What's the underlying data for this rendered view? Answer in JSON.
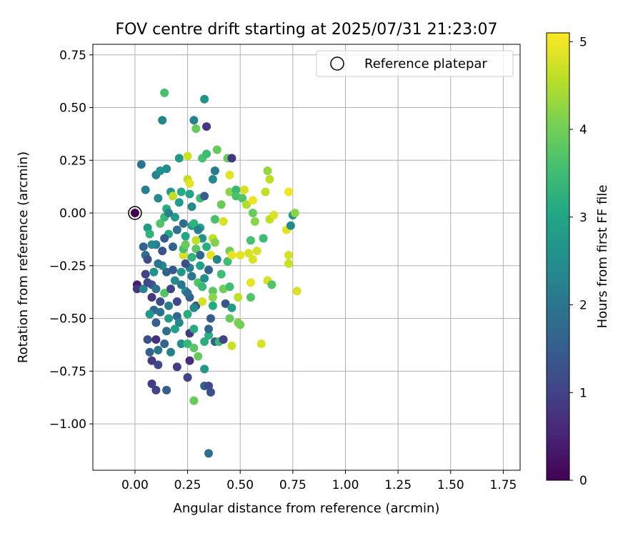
{
  "chart_data": {
    "type": "scatter",
    "title": "FOV centre drift starting at 2025/07/31 21:23:07",
    "xlabel": "Angular distance from reference (arcmin)",
    "ylabel": "Rotation from reference (arcmin)",
    "xlim": [
      -0.2,
      1.83
    ],
    "ylim": [
      -1.22,
      0.8
    ],
    "x_ticks": [
      {
        "value": 0.0,
        "label": "0.00"
      },
      {
        "value": 0.25,
        "label": "0.25"
      },
      {
        "value": 0.5,
        "label": "0.50"
      },
      {
        "value": 0.75,
        "label": "0.75"
      },
      {
        "value": 1.0,
        "label": "1.00"
      },
      {
        "value": 1.25,
        "label": "1.25"
      },
      {
        "value": 1.5,
        "label": "1.50"
      },
      {
        "value": 1.75,
        "label": "1.75"
      }
    ],
    "y_ticks": [
      {
        "value": 0.75,
        "label": "0.75"
      },
      {
        "value": 0.5,
        "label": "0.50"
      },
      {
        "value": 0.25,
        "label": "0.25"
      },
      {
        "value": 0.0,
        "label": "0.00"
      },
      {
        "value": -0.25,
        "label": "−0.25"
      },
      {
        "value": -0.5,
        "label": "−0.50"
      },
      {
        "value": -0.75,
        "label": "−0.75"
      },
      {
        "value": -1.0,
        "label": "−1.00"
      }
    ],
    "grid": true,
    "legend": {
      "position": "top-right",
      "label": "Reference platepar"
    },
    "reference_point": {
      "x": 0.0,
      "y": 0.0
    },
    "colorbar": {
      "label": "Hours from first FF file",
      "colormap": "viridis",
      "range": [
        0,
        5.1
      ],
      "ticks": [
        0,
        1,
        2,
        3,
        4,
        5
      ]
    },
    "points": [
      [
        0.0,
        0.0,
        0.0
      ],
      [
        0.01,
        -0.34,
        0.4
      ],
      [
        0.01,
        -0.36,
        0.8
      ],
      [
        0.03,
        0.23,
        2.0
      ],
      [
        0.04,
        -0.16,
        1.6
      ],
      [
        0.05,
        -0.2,
        1.8
      ],
      [
        0.05,
        0.11,
        2.2
      ],
      [
        0.06,
        -0.07,
        2.8
      ],
      [
        0.07,
        -0.1,
        3.3
      ],
      [
        0.05,
        -0.29,
        1.0
      ],
      [
        0.06,
        -0.22,
        1.2
      ],
      [
        0.08,
        -0.34,
        1.4
      ],
      [
        0.08,
        -0.4,
        0.8
      ],
      [
        0.09,
        -0.46,
        1.7
      ],
      [
        0.06,
        -0.6,
        1.3
      ],
      [
        0.07,
        -0.66,
        1.6
      ],
      [
        0.08,
        -0.7,
        0.9
      ],
      [
        0.08,
        -0.81,
        0.9
      ],
      [
        0.1,
        -0.84,
        1.0
      ],
      [
        0.1,
        -0.6,
        0.7
      ],
      [
        0.11,
        -0.72,
        1.1
      ],
      [
        0.1,
        -0.52,
        1.5
      ],
      [
        0.1,
        -0.36,
        1.9
      ],
      [
        0.12,
        -0.42,
        1.2
      ],
      [
        0.11,
        -0.65,
        2.0
      ],
      [
        0.1,
        -0.15,
        2.1
      ],
      [
        0.1,
        0.18,
        2.3
      ],
      [
        0.11,
        0.07,
        2.4
      ],
      [
        0.12,
        0.2,
        2.6
      ],
      [
        0.13,
        0.44,
        2.3
      ],
      [
        0.14,
        0.57,
        3.6
      ],
      [
        0.15,
        0.21,
        2.5
      ],
      [
        0.12,
        -0.05,
        3.7
      ],
      [
        0.14,
        -0.02,
        3.4
      ],
      [
        0.15,
        0.02,
        3.2
      ],
      [
        0.16,
        -0.1,
        3.0
      ],
      [
        0.13,
        -0.18,
        1.3
      ],
      [
        0.15,
        -0.28,
        1.6
      ],
      [
        0.14,
        -0.38,
        3.7
      ],
      [
        0.16,
        -0.44,
        2.1
      ],
      [
        0.15,
        -0.56,
        1.8
      ],
      [
        0.14,
        -0.62,
        1.6
      ],
      [
        0.17,
        -0.66,
        2.2
      ],
      [
        0.15,
        -0.84,
        1.5
      ],
      [
        0.17,
        0.1,
        2.7
      ],
      [
        0.18,
        0.08,
        4.6
      ],
      [
        0.19,
        -0.02,
        2.8
      ],
      [
        0.2,
        -0.08,
        1.9
      ],
      [
        0.19,
        -0.32,
        2.4
      ],
      [
        0.2,
        -0.49,
        1.7
      ],
      [
        0.21,
        -0.52,
        2.3
      ],
      [
        0.2,
        -0.73,
        0.9
      ],
      [
        0.22,
        -0.62,
        2.5
      ],
      [
        0.21,
        0.26,
        2.7
      ],
      [
        0.22,
        0.1,
        3.1
      ],
      [
        0.23,
        -0.2,
        4.8
      ],
      [
        0.23,
        -0.17,
        3.6
      ],
      [
        0.24,
        -0.15,
        3.9
      ],
      [
        0.24,
        -0.37,
        2.6
      ],
      [
        0.25,
        -0.48,
        3.2
      ],
      [
        0.25,
        -0.62,
        3.4
      ],
      [
        0.25,
        0.27,
        4.7
      ],
      [
        0.25,
        0.16,
        4.6
      ],
      [
        0.26,
        0.14,
        4.9
      ],
      [
        0.26,
        0.09,
        3.0
      ],
      [
        0.27,
        0.03,
        2.4
      ],
      [
        0.27,
        -0.06,
        2.8
      ],
      [
        0.26,
        -0.26,
        2.2
      ],
      [
        0.26,
        -0.4,
        1.5
      ],
      [
        0.26,
        -0.57,
        0.8
      ],
      [
        0.26,
        -0.7,
        0.6
      ],
      [
        0.25,
        -0.78,
        1.0
      ],
      [
        0.28,
        0.44,
        2.2
      ],
      [
        0.29,
        0.4,
        3.9
      ],
      [
        0.28,
        -0.05,
        3.3
      ],
      [
        0.29,
        -0.17,
        3.8
      ],
      [
        0.3,
        -0.33,
        3.7
      ],
      [
        0.29,
        -0.44,
        1.3
      ],
      [
        0.28,
        -0.55,
        3.1
      ],
      [
        0.28,
        -0.64,
        3.8
      ],
      [
        0.3,
        -0.68,
        3.9
      ],
      [
        0.28,
        -0.89,
        3.9
      ],
      [
        0.31,
        0.07,
        3.5
      ],
      [
        0.32,
        0.26,
        3.6
      ],
      [
        0.31,
        -0.07,
        3.0
      ],
      [
        0.32,
        -0.12,
        2.6
      ],
      [
        0.31,
        -0.25,
        2.9
      ],
      [
        0.32,
        -0.35,
        3.4
      ],
      [
        0.33,
        0.54,
        2.6
      ],
      [
        0.33,
        0.08,
        1.5
      ],
      [
        0.34,
        0.41,
        0.8
      ],
      [
        0.34,
        0.28,
        3.5
      ],
      [
        0.32,
        -0.42,
        4.8
      ],
      [
        0.33,
        -0.61,
        3.2
      ],
      [
        0.33,
        -0.74,
        2.7
      ],
      [
        0.33,
        -0.82,
        1.6
      ],
      [
        0.35,
        -0.82,
        1.1
      ],
      [
        0.35,
        -1.14,
        1.8
      ],
      [
        0.35,
        -0.58,
        3.2
      ],
      [
        0.35,
        -0.55,
        1.7
      ],
      [
        0.36,
        -0.85,
        1.2
      ],
      [
        0.36,
        -0.5,
        1.5
      ],
      [
        0.37,
        -0.37,
        3.8
      ],
      [
        0.37,
        -0.44,
        3.1
      ],
      [
        0.37,
        -0.4,
        4.2
      ],
      [
        0.37,
        0.16,
        2.4
      ],
      [
        0.38,
        0.2,
        3.5
      ],
      [
        0.38,
        0.2,
        2.1
      ],
      [
        0.39,
        0.3,
        3.9
      ],
      [
        0.36,
        -0.2,
        4.9
      ],
      [
        0.37,
        -0.12,
        4.6
      ],
      [
        0.38,
        -0.14,
        4.1
      ],
      [
        0.38,
        -0.03,
        3.6
      ],
      [
        0.38,
        -0.61,
        1.6
      ],
      [
        0.4,
        -0.61,
        3.4
      ],
      [
        0.41,
        0.04,
        3.9
      ],
      [
        0.42,
        -0.04,
        4.8
      ],
      [
        0.41,
        -0.29,
        3.5
      ],
      [
        0.42,
        -0.36,
        4.0
      ],
      [
        0.43,
        -0.43,
        1.3
      ],
      [
        0.42,
        -0.6,
        1.0
      ],
      [
        0.44,
        0.26,
        3.9
      ],
      [
        0.45,
        0.18,
        4.9
      ],
      [
        0.46,
        0.26,
        0.8
      ],
      [
        0.45,
        0.1,
        4.2
      ],
      [
        0.44,
        -0.23,
        3.5
      ],
      [
        0.45,
        -0.18,
        4.0
      ],
      [
        0.46,
        -0.2,
        4.9
      ],
      [
        0.45,
        -0.35,
        3.5
      ],
      [
        0.46,
        -0.45,
        2.8
      ],
      [
        0.45,
        -0.5,
        3.9
      ],
      [
        0.46,
        -0.63,
        4.7
      ],
      [
        0.48,
        0.11,
        3.4
      ],
      [
        0.48,
        0.08,
        3.6
      ],
      [
        0.49,
        -0.52,
        4.1
      ],
      [
        0.49,
        -0.4,
        4.6
      ],
      [
        0.5,
        -0.2,
        4.9
      ],
      [
        0.5,
        -0.53,
        4.0
      ],
      [
        0.51,
        0.07,
        3.7
      ],
      [
        0.52,
        0.11,
        4.8
      ],
      [
        0.53,
        0.04,
        4.5
      ],
      [
        0.54,
        -0.19,
        4.8
      ],
      [
        0.55,
        -0.33,
        4.9
      ],
      [
        0.55,
        -0.4,
        3.7
      ],
      [
        0.55,
        -0.13,
        3.6
      ],
      [
        0.56,
        0.06,
        5.0
      ],
      [
        0.56,
        0.0,
        3.9
      ],
      [
        0.56,
        -0.22,
        4.8
      ],
      [
        0.57,
        -0.04,
        4.2
      ],
      [
        0.58,
        -0.18,
        4.8
      ],
      [
        0.6,
        -0.62,
        4.8
      ],
      [
        0.61,
        -0.12,
        3.5
      ],
      [
        0.62,
        0.1,
        4.6
      ],
      [
        0.63,
        -0.32,
        4.8
      ],
      [
        0.63,
        0.2,
        4.3
      ],
      [
        0.64,
        0.16,
        4.6
      ],
      [
        0.64,
        -0.03,
        4.6
      ],
      [
        0.65,
        -0.34,
        3.7
      ],
      [
        0.66,
        -0.01,
        4.8
      ],
      [
        0.72,
        -0.08,
        4.9
      ],
      [
        0.73,
        0.1,
        5.0
      ],
      [
        0.73,
        -0.2,
        4.8
      ],
      [
        0.73,
        -0.24,
        4.7
      ],
      [
        0.74,
        -0.06,
        2.4
      ],
      [
        0.75,
        -0.01,
        2.6
      ],
      [
        0.76,
        0.0,
        4.2
      ],
      [
        0.77,
        -0.37,
        4.8
      ],
      [
        0.29,
        -0.13,
        4.6
      ],
      [
        0.22,
        -0.34,
        2.0
      ],
      [
        0.18,
        -0.27,
        1.4
      ],
      [
        0.2,
        -0.42,
        1.1
      ],
      [
        0.23,
        -0.05,
        1.8
      ],
      [
        0.24,
        -0.24,
        1.2
      ],
      [
        0.17,
        -0.36,
        1.0
      ],
      [
        0.19,
        -0.55,
        2.9
      ],
      [
        0.3,
        -0.08,
        2.2
      ],
      [
        0.31,
        -0.2,
        1.7
      ],
      [
        0.27,
        -0.3,
        2.0
      ],
      [
        0.21,
        0.05,
        2.8
      ],
      [
        0.16,
        0.0,
        2.2
      ],
      [
        0.14,
        -0.12,
        1.4
      ],
      [
        0.13,
        -0.25,
        2.3
      ],
      [
        0.12,
        -0.47,
        1.9
      ],
      [
        0.09,
        -0.28,
        2.6
      ],
      [
        0.08,
        -0.15,
        2.4
      ],
      [
        0.07,
        -0.48,
        2.7
      ],
      [
        0.04,
        -0.36,
        2.3
      ],
      [
        0.06,
        -0.33,
        1.1
      ],
      [
        0.22,
        -0.28,
        2.7
      ],
      [
        0.27,
        -0.21,
        3.3
      ],
      [
        0.24,
        -0.11,
        3.0
      ],
      [
        0.28,
        -0.45,
        2.4
      ],
      [
        0.33,
        -0.31,
        2.5
      ],
      [
        0.35,
        -0.27,
        1.6
      ],
      [
        0.39,
        -0.22,
        2.3
      ],
      [
        0.34,
        -0.16,
        3.2
      ],
      [
        0.18,
        -0.16,
        1.6
      ],
      [
        0.11,
        -0.24,
        2.0
      ],
      [
        0.16,
        -0.5,
        2.8
      ],
      [
        0.25,
        -0.38,
        1.8
      ]
    ]
  }
}
